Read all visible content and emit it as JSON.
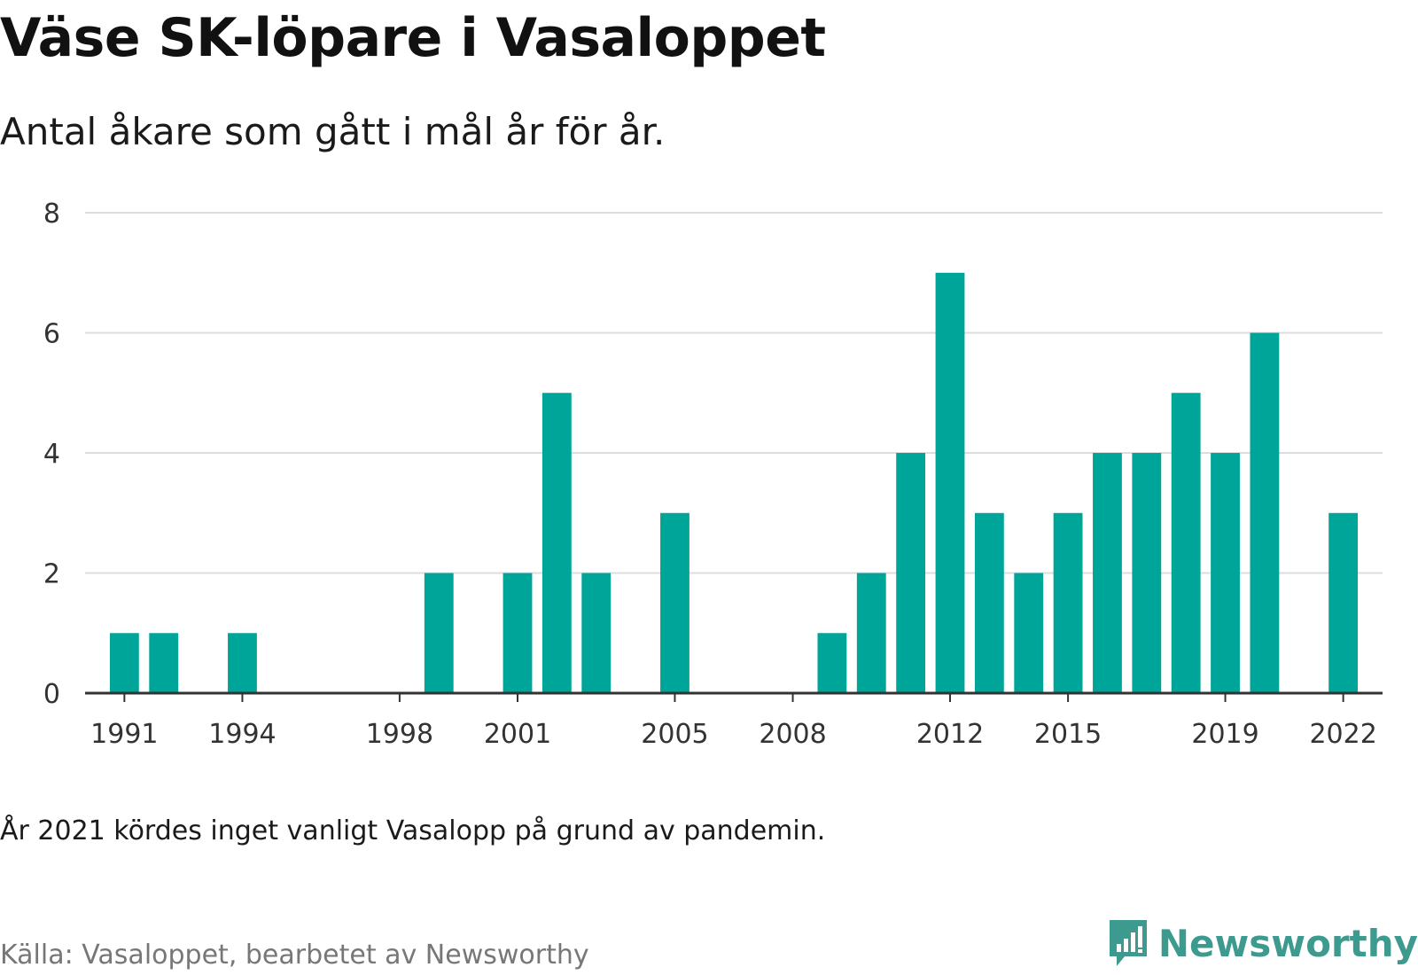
{
  "header": {
    "title": "Väse SK-löpare i Vasaloppet",
    "subtitle": "Antal åkare som gått i mål år för år."
  },
  "footer": {
    "note": "År 2021 kördes inget vanligt Vasalopp på grund av pandemin.",
    "source": "Källa: Vasaloppet, bearbetet av Newsworthy",
    "brand": "Newsworthy",
    "brand_icon": "bar-chart-speech-icon"
  },
  "colors": {
    "bar": "#00a59a",
    "grid": "#dddddd",
    "axis": "#333333",
    "brand": "#3c9a8e"
  },
  "chart_data": {
    "type": "bar",
    "title": "Väse SK-löpare i Vasaloppet",
    "subtitle": "Antal åkare som gått i mål år för år.",
    "xlabel": "",
    "ylabel": "",
    "x": [
      1991,
      1992,
      1993,
      1994,
      1995,
      1996,
      1997,
      1998,
      1999,
      2000,
      2001,
      2002,
      2003,
      2004,
      2005,
      2006,
      2007,
      2008,
      2009,
      2010,
      2011,
      2012,
      2013,
      2014,
      2015,
      2016,
      2017,
      2018,
      2019,
      2020,
      2021,
      2022
    ],
    "values": [
      1,
      1,
      0,
      1,
      0,
      0,
      0,
      0,
      2,
      0,
      2,
      5,
      2,
      0,
      3,
      0,
      0,
      0,
      1,
      2,
      4,
      7,
      3,
      2,
      3,
      4,
      4,
      5,
      4,
      6,
      null,
      3
    ],
    "xlim": [
      1990,
      2023
    ],
    "ylim": [
      0,
      8
    ],
    "yticks": [
      0,
      2,
      4,
      6,
      8
    ],
    "xticks": [
      "1991",
      "1994",
      "1998",
      "2001",
      "2005",
      "2008",
      "2012",
      "2015",
      "2019",
      "2022"
    ],
    "grid": true,
    "legend": "none"
  }
}
